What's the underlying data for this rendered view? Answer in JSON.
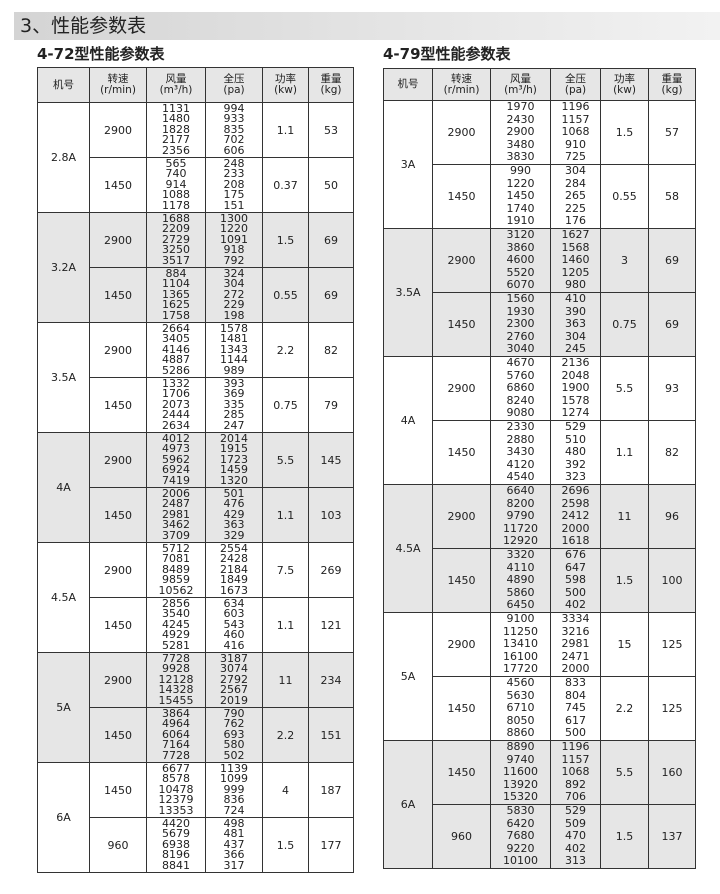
{
  "header": {
    "title": "3、性能参数表"
  },
  "tables": [
    {
      "title": "4-72型性能参数表",
      "headers": [
        [
          "机号"
        ],
        [
          "转速",
          "(r/min)"
        ],
        [
          "风量",
          "(m³/h)"
        ],
        [
          "全压",
          "(pa)"
        ],
        [
          "功率",
          "(kw)"
        ],
        [
          "重量",
          "(kg)"
        ]
      ],
      "groups": [
        {
          "model": "2.8A",
          "rows": [
            {
              "speed": 2900,
              "flow": [
                1131,
                1480,
                1828,
                2177,
                2356
              ],
              "pressure": [
                994,
                933,
                835,
                702,
                606
              ],
              "power": 1.1,
              "weight": 53
            },
            {
              "speed": 1450,
              "flow": [
                565,
                740,
                914,
                1088,
                1178
              ],
              "pressure": [
                248,
                233,
                208,
                175,
                151
              ],
              "power": 0.37,
              "weight": 50
            }
          ]
        },
        {
          "model": "3.2A",
          "rows": [
            {
              "speed": 2900,
              "flow": [
                1688,
                2209,
                2729,
                3250,
                3517
              ],
              "pressure": [
                1300,
                1220,
                1091,
                918,
                792
              ],
              "power": 1.5,
              "weight": 69
            },
            {
              "speed": 1450,
              "flow": [
                884,
                1104,
                1365,
                1625,
                1758
              ],
              "pressure": [
                324,
                304,
                272,
                229,
                198
              ],
              "power": 0.55,
              "weight": 69
            }
          ]
        },
        {
          "model": "3.5A",
          "rows": [
            {
              "speed": 2900,
              "flow": [
                2664,
                3405,
                4146,
                4887,
                5286
              ],
              "pressure": [
                1578,
                1481,
                1343,
                1144,
                989
              ],
              "power": 2.2,
              "weight": 82
            },
            {
              "speed": 1450,
              "flow": [
                1332,
                1706,
                2073,
                2444,
                2634
              ],
              "pressure": [
                393,
                369,
                335,
                285,
                247
              ],
              "power": 0.75,
              "weight": 79
            }
          ]
        },
        {
          "model": "4A",
          "rows": [
            {
              "speed": 2900,
              "flow": [
                4012,
                4973,
                5962,
                6924,
                7419
              ],
              "pressure": [
                2014,
                1915,
                1723,
                1459,
                1320
              ],
              "power": 5.5,
              "weight": 145
            },
            {
              "speed": 1450,
              "flow": [
                2006,
                2487,
                2981,
                3462,
                3709
              ],
              "pressure": [
                501,
                476,
                429,
                363,
                329
              ],
              "power": 1.1,
              "weight": 103
            }
          ]
        },
        {
          "model": "4.5A",
          "rows": [
            {
              "speed": 2900,
              "flow": [
                5712,
                7081,
                8489,
                9859,
                10562
              ],
              "pressure": [
                2554,
                2428,
                2184,
                1849,
                1673
              ],
              "power": 7.5,
              "weight": 269
            },
            {
              "speed": 1450,
              "flow": [
                2856,
                3540,
                4245,
                4929,
                5281
              ],
              "pressure": [
                634,
                603,
                543,
                460,
                416
              ],
              "power": 1.1,
              "weight": 121
            }
          ]
        },
        {
          "model": "5A",
          "rows": [
            {
              "speed": 2900,
              "flow": [
                7728,
                9928,
                12128,
                14328,
                15455
              ],
              "pressure": [
                3187,
                3074,
                2792,
                2567,
                2019
              ],
              "power": 11,
              "weight": 234
            },
            {
              "speed": 1450,
              "flow": [
                3864,
                4964,
                6064,
                7164,
                7728
              ],
              "pressure": [
                790,
                762,
                693,
                580,
                502
              ],
              "power": 2.2,
              "weight": 151
            }
          ]
        },
        {
          "model": "6A",
          "rows": [
            {
              "speed": 1450,
              "flow": [
                6677,
                8578,
                10478,
                12379,
                13353
              ],
              "pressure": [
                1139,
                1099,
                999,
                836,
                724
              ],
              "power": 4,
              "weight": 187
            },
            {
              "speed": 960,
              "flow": [
                4420,
                5679,
                6938,
                8196,
                8841
              ],
              "pressure": [
                498,
                481,
                437,
                366,
                317
              ],
              "power": 1.5,
              "weight": 177
            }
          ]
        }
      ]
    },
    {
      "title": "4-79型性能参数表",
      "headers": [
        [
          "机号"
        ],
        [
          "转速",
          "(r/min)"
        ],
        [
          "风量",
          "(m³/h)"
        ],
        [
          "全压",
          "(pa)"
        ],
        [
          "功率",
          "(kw)"
        ],
        [
          "重量",
          "(kg)"
        ]
      ],
      "groups": [
        {
          "model": "3A",
          "rows": [
            {
              "speed": 2900,
              "flow": [
                1970,
                2430,
                2900,
                3480,
                3830
              ],
              "pressure": [
                1196,
                1157,
                1068,
                910,
                725
              ],
              "power": 1.5,
              "weight": 57
            },
            {
              "speed": 1450,
              "flow": [
                990,
                1220,
                1450,
                1740,
                1910
              ],
              "pressure": [
                304,
                284,
                265,
                225,
                176
              ],
              "power": 0.55,
              "weight": 58
            }
          ]
        },
        {
          "model": "3.5A",
          "rows": [
            {
              "speed": 2900,
              "flow": [
                3120,
                3860,
                4600,
                5520,
                6070
              ],
              "pressure": [
                1627,
                1568,
                1460,
                1205,
                980
              ],
              "power": 3,
              "weight": 69
            },
            {
              "speed": 1450,
              "flow": [
                1560,
                1930,
                2300,
                2760,
                3040
              ],
              "pressure": [
                410,
                390,
                363,
                304,
                245
              ],
              "power": 0.75,
              "weight": 69
            }
          ]
        },
        {
          "model": "4A",
          "rows": [
            {
              "speed": 2900,
              "flow": [
                4670,
                5760,
                6860,
                8240,
                9080
              ],
              "pressure": [
                2136,
                2048,
                1900,
                1578,
                1274
              ],
              "power": 5.5,
              "weight": 93
            },
            {
              "speed": 1450,
              "flow": [
                2330,
                2880,
                3430,
                4120,
                4540
              ],
              "pressure": [
                529,
                510,
                480,
                392,
                323
              ],
              "power": 1.1,
              "weight": 82
            }
          ]
        },
        {
          "model": "4.5A",
          "rows": [
            {
              "speed": 2900,
              "flow": [
                6640,
                8200,
                9790,
                11720,
                12920
              ],
              "pressure": [
                2696,
                2598,
                2412,
                2000,
                1618
              ],
              "power": 11,
              "weight": 96
            },
            {
              "speed": 1450,
              "flow": [
                3320,
                4110,
                4890,
                5860,
                6450
              ],
              "pressure": [
                676,
                647,
                598,
                500,
                402
              ],
              "power": 1.5,
              "weight": 100
            }
          ]
        },
        {
          "model": "5A",
          "rows": [
            {
              "speed": 2900,
              "flow": [
                9100,
                11250,
                13410,
                16100,
                17720
              ],
              "pressure": [
                3334,
                3216,
                2981,
                2471,
                2000
              ],
              "power": 15,
              "weight": 125
            },
            {
              "speed": 1450,
              "flow": [
                4560,
                5630,
                6710,
                8050,
                8860
              ],
              "pressure": [
                833,
                804,
                745,
                617,
                500
              ],
              "power": 2.2,
              "weight": 125
            }
          ]
        },
        {
          "model": "6A",
          "rows": [
            {
              "speed": 1450,
              "flow": [
                8890,
                9740,
                11600,
                13920,
                15320
              ],
              "pressure": [
                1196,
                1157,
                1068,
                892,
                706
              ],
              "power": 5.5,
              "weight": 160
            },
            {
              "speed": 960,
              "flow": [
                5830,
                6420,
                7680,
                9220,
                10100
              ],
              "pressure": [
                529,
                509,
                470,
                402,
                313
              ],
              "power": 1.5,
              "weight": 137
            }
          ]
        }
      ]
    }
  ]
}
